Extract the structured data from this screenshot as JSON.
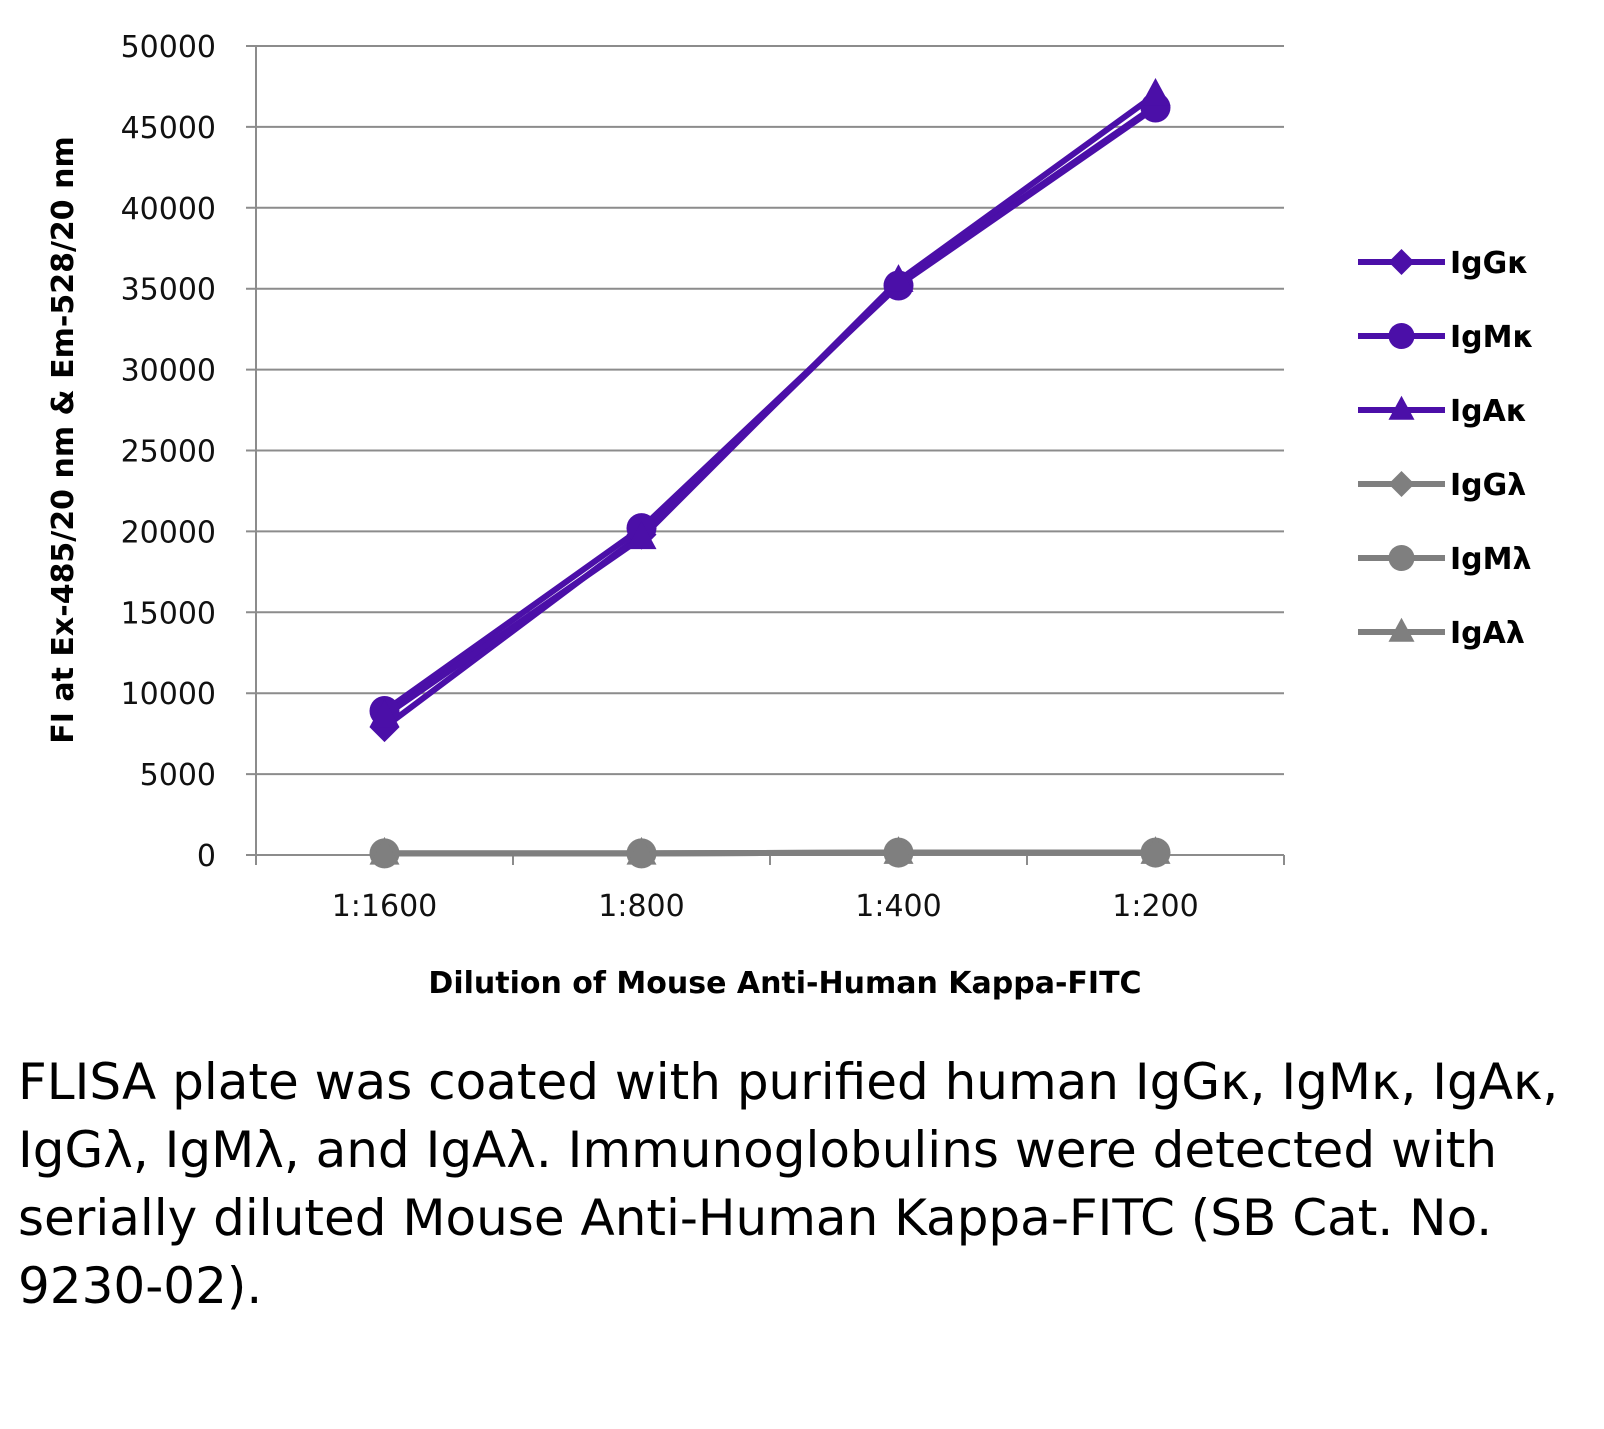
{
  "chart_data": {
    "type": "line",
    "title": "",
    "xlabel": "Dilution of Mouse Anti-Human Kappa-FITC",
    "ylabel": "FI at Ex-485/20 nm & Em-528/20 nm",
    "categories": [
      "1:1600",
      "1:800",
      "1:400",
      "1:200"
    ],
    "ylim": [
      0,
      50000
    ],
    "yticks": [
      0,
      5000,
      10000,
      15000,
      20000,
      25000,
      30000,
      35000,
      40000,
      45000,
      50000
    ],
    "ytick_labels": [
      "0",
      "5000",
      "10000",
      "15000",
      "20000",
      "25000",
      "30000",
      "35000",
      "40000",
      "45000",
      "50000"
    ],
    "grid": "horizontal",
    "legend": "right",
    "series": [
      {
        "name": "IgGκ",
        "marker": "diamond",
        "color": "#4b0fa8",
        "values": [
          7900,
          19800,
          35300,
          46300
        ]
      },
      {
        "name": "IgMκ",
        "marker": "circle",
        "color": "#4b0fa8",
        "values": [
          8900,
          20200,
          35200,
          46200
        ]
      },
      {
        "name": "IgAκ",
        "marker": "triangle",
        "color": "#4b0fa8",
        "values": [
          8600,
          19600,
          35500,
          47000
        ]
      },
      {
        "name": "IgGλ",
        "marker": "diamond",
        "color": "#7f7f7f",
        "values": [
          100,
          100,
          150,
          150
        ]
      },
      {
        "name": "IgMλ",
        "marker": "circle",
        "color": "#7f7f7f",
        "values": [
          100,
          100,
          150,
          150
        ]
      },
      {
        "name": "IgAλ",
        "marker": "triangle",
        "color": "#7f7f7f",
        "values": [
          100,
          100,
          150,
          150
        ]
      }
    ]
  },
  "caption": "FLISA plate was coated with purified human IgGκ, IgMκ, IgAκ, IgGλ, IgMλ, and IgAλ. Immunoglobulins were detected with serially diluted Mouse Anti-Human Kappa-FITC (SB Cat. No. 9230-02)."
}
